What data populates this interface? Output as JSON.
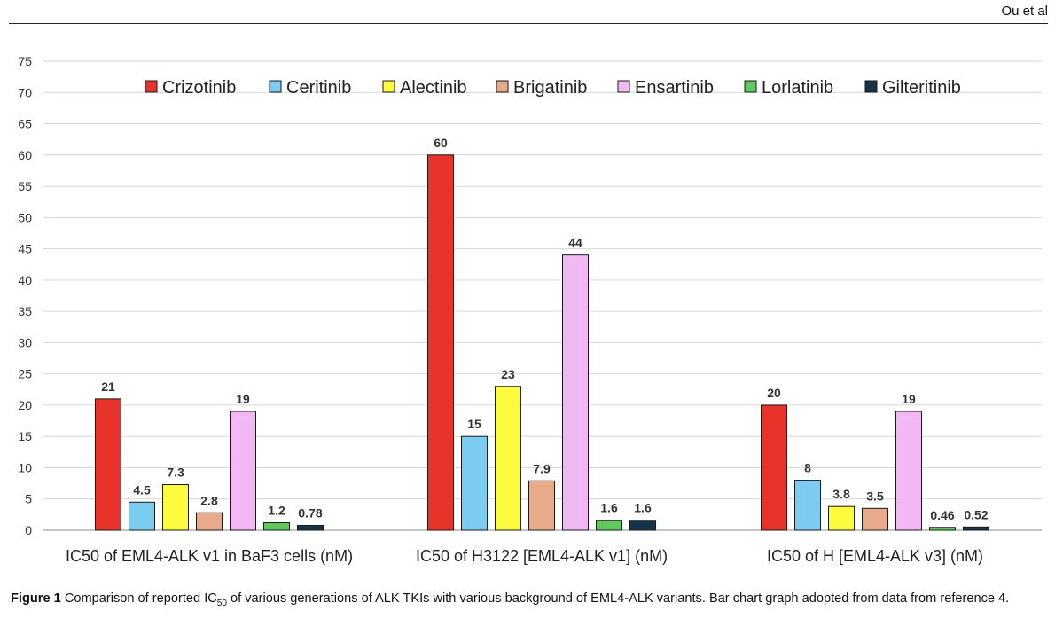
{
  "header": {
    "running_head": "Ou et al"
  },
  "chart_data": {
    "type": "bar",
    "title": "",
    "xlabel": "",
    "ylabel": "",
    "ylim": [
      0,
      75
    ],
    "yticks": [
      0,
      5,
      10,
      15,
      20,
      25,
      30,
      35,
      40,
      45,
      50,
      55,
      60,
      65,
      70,
      75
    ],
    "grid": true,
    "legend_position": "top",
    "categories": [
      "IC50 of EML4-ALK v1 in BaF3 cells (nM)",
      "IC50 of H3122 [EML4-ALK v1] (nM)",
      "IC50 of H [EML4-ALK v3] (nM)"
    ],
    "series": [
      {
        "name": "Crizotinib",
        "color": "#e8332a",
        "values": [
          21,
          60,
          20
        ],
        "labels": [
          "21",
          "60",
          "20"
        ]
      },
      {
        "name": "Ceritinib",
        "color": "#7ccbf0",
        "values": [
          4.5,
          15,
          8
        ],
        "labels": [
          "4.5",
          "15",
          "8"
        ]
      },
      {
        "name": "Alectinib",
        "color": "#fdfb3d",
        "values": [
          7.3,
          23,
          3.8
        ],
        "labels": [
          "7.3",
          "23",
          "3.8"
        ]
      },
      {
        "name": "Brigatinib",
        "color": "#e8ab8a",
        "values": [
          2.8,
          7.9,
          3.5
        ],
        "labels": [
          "2.8",
          "7.9",
          "3.5"
        ]
      },
      {
        "name": "Ensartinib",
        "color": "#f1b8f4",
        "values": [
          19,
          44,
          19
        ],
        "labels": [
          "19",
          "44",
          "19"
        ]
      },
      {
        "name": "Lorlatinib",
        "color": "#5fc95c",
        "values": [
          1.2,
          1.6,
          0.46
        ],
        "labels": [
          "1.2",
          "1.6",
          "0.46"
        ]
      },
      {
        "name": "Gilteritinib",
        "color": "#17344a",
        "values": [
          0.78,
          1.6,
          0.52
        ],
        "labels": [
          "0.78",
          "1.6",
          "0.52"
        ]
      }
    ]
  },
  "caption": {
    "label": "Figure 1",
    "text_before": "Comparison of reported IC",
    "subscript": "50",
    "text_after": " of various generations of ALK TKIs with various background of EML4-ALK variants. Bar chart graph adopted from data from reference 4."
  }
}
